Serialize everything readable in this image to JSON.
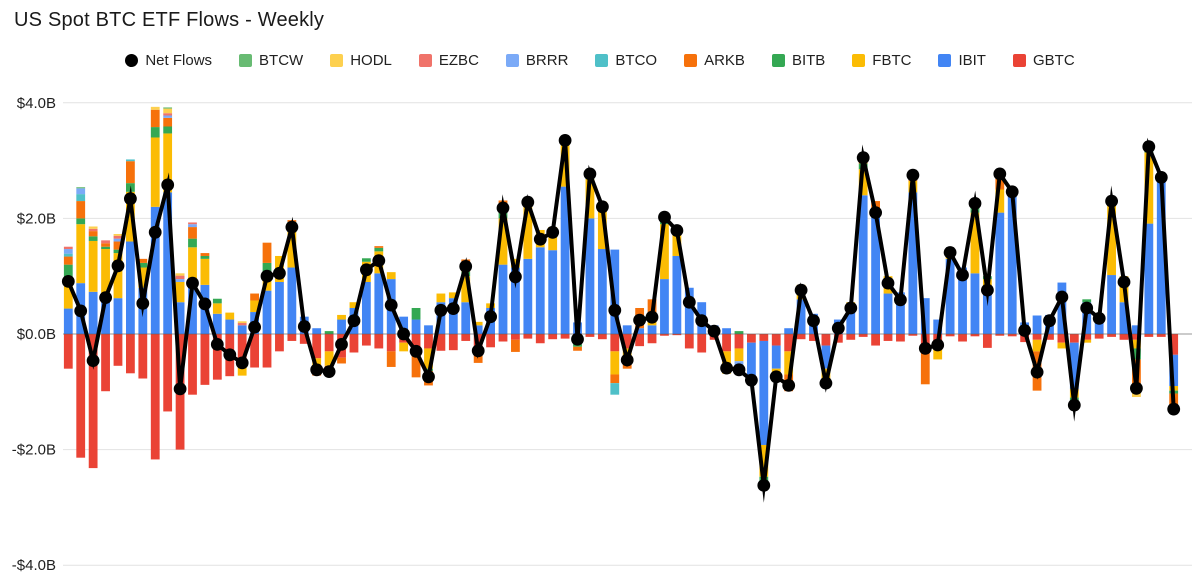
{
  "title": "US Spot BTC ETF Flows - Weekly",
  "legend": [
    {
      "label": "Net Flows",
      "color": "#000000",
      "marker": "circle"
    },
    {
      "label": "BTCW",
      "color": "#68BB73",
      "marker": "square"
    },
    {
      "label": "HODL",
      "color": "#FDD04F",
      "marker": "square"
    },
    {
      "label": "EZBC",
      "color": "#F0736A",
      "marker": "square"
    },
    {
      "label": "BRRR",
      "color": "#7BAAF7",
      "marker": "square"
    },
    {
      "label": "BTCO",
      "color": "#4FC0C8",
      "marker": "square"
    },
    {
      "label": "ARKB",
      "color": "#F6710B",
      "marker": "square"
    },
    {
      "label": "BITB",
      "color": "#34A853",
      "marker": "square"
    },
    {
      "label": "FBTC",
      "color": "#FBBC04",
      "marker": "square"
    },
    {
      "label": "IBIT",
      "color": "#4285F4",
      "marker": "square"
    },
    {
      "label": "GBTC",
      "color": "#EA4335",
      "marker": "square"
    }
  ],
  "chart_data": {
    "type": "bar",
    "subtype": "stacked-bars-with-line",
    "title": "US Spot BTC ETF Flows - Weekly",
    "xlabel": "",
    "ylabel": "",
    "x_axis": {
      "unit": "week",
      "tick_labels_visible": false,
      "n_weeks": 90
    },
    "y_axis": {
      "ticks": [
        {
          "label": "$4.0B",
          "value": 4
        },
        {
          "label": "$2.0B",
          "value": 2
        },
        {
          "label": "$0.0B",
          "value": 0
        },
        {
          "label": "-$2.0B",
          "value": -2
        },
        {
          "label": "-$4.0B",
          "value": -4
        }
      ],
      "ylim": [
        -4.4,
        4.4
      ],
      "grid": true
    },
    "units": "billions USD",
    "series": [
      {
        "name": "GBTC",
        "color": "#EA4335",
        "values": [
          -0.6,
          -2.14,
          -2.32,
          -0.99,
          -0.55,
          -0.68,
          -0.77,
          -2.17,
          -1.34,
          -2.0,
          -1.05,
          -0.88,
          -0.79,
          -0.73,
          -0.55,
          -0.58,
          -0.58,
          -0.3,
          -0.12,
          -0.17,
          -0.42,
          -0.3,
          -0.41,
          -0.32,
          -0.2,
          -0.25,
          -0.3,
          -0.15,
          -0.25,
          -0.25,
          -0.29,
          -0.28,
          -0.12,
          -0.25,
          -0.23,
          -0.13,
          -0.1,
          -0.08,
          -0.16,
          -0.09,
          -0.08,
          -0.1,
          -0.05,
          -0.09,
          -0.3,
          -0.25,
          -0.21,
          -0.16,
          -0.03,
          -0.02,
          -0.25,
          -0.32,
          -0.1,
          -0.3,
          -0.25,
          -0.15,
          -0.12,
          -0.2,
          -0.3,
          -0.09,
          -0.12,
          -0.2,
          -0.15,
          -0.1,
          -0.05,
          -0.2,
          -0.12,
          -0.13,
          -0.03,
          -0.17,
          -0.24,
          -0.04,
          -0.13,
          -0.04,
          -0.24,
          -0.03,
          -0.04,
          -0.14,
          -0.1,
          -0.1,
          -0.15,
          -0.15,
          -0.1,
          -0.08,
          -0.05,
          -0.1,
          -0.1,
          -0.05,
          -0.05,
          -0.36
        ]
      },
      {
        "name": "IBIT",
        "color": "#4285F4",
        "values": [
          0.44,
          0.88,
          0.73,
          0.67,
          0.62,
          1.6,
          0.8,
          2.2,
          2.45,
          0.55,
          0.95,
          0.85,
          0.35,
          0.25,
          0.15,
          0.38,
          0.75,
          0.9,
          1.15,
          0.3,
          0.1,
          0,
          0.25,
          0.45,
          0.9,
          1.05,
          0.95,
          0.3,
          0.25,
          0.15,
          0.55,
          0.62,
          0.55,
          0.15,
          0.45,
          1.2,
          1.15,
          1.3,
          1.5,
          1.45,
          2.55,
          0.2,
          2.0,
          1.47,
          1.46,
          0.15,
          0.1,
          0.15,
          0.95,
          1.35,
          0.8,
          0.55,
          0.15,
          0.1,
          0,
          -0.6,
          -1.8,
          -0.4,
          0.1,
          0.6,
          0.35,
          -0.4,
          0.25,
          0.45,
          2.4,
          2.05,
          0.7,
          0.72,
          2.45,
          0.62,
          0.25,
          1.3,
          1.15,
          1.05,
          0.7,
          2.1,
          2.4,
          0.2,
          0.32,
          0.33,
          0.89,
          -0.8,
          0.55,
          0.35,
          1.02,
          0.55,
          0.15,
          1.91,
          2.64,
          -0.54
        ]
      },
      {
        "name": "FBTC",
        "color": "#FBBC04",
        "values": [
          0.46,
          1.02,
          0.88,
          0.8,
          0.78,
          0.86,
          0.35,
          1.2,
          1.02,
          0.35,
          0.55,
          0.45,
          0.18,
          0.12,
          -0.17,
          0.2,
          0.3,
          0.45,
          0.75,
          0,
          -0.2,
          -0.25,
          0.08,
          0.1,
          0.35,
          0.38,
          0.12,
          -0.15,
          0,
          -0.35,
          0.15,
          0.1,
          0.45,
          0.06,
          0.08,
          0.8,
          0.15,
          1.0,
          0.3,
          0.4,
          0.75,
          0,
          0.68,
          0.82,
          -0.4,
          -0.2,
          0,
          0.15,
          0.95,
          0.4,
          0,
          0,
          0,
          -0.3,
          -0.22,
          0,
          -0.55,
          -0.14,
          -0.4,
          0.25,
          0,
          -0.25,
          0,
          0.1,
          0.45,
          0,
          0.3,
          0,
          0.2,
          0,
          -0.2,
          0.15,
          0,
          1.05,
          0.25,
          0.4,
          0,
          0,
          -0.2,
          0,
          -0.1,
          -0.15,
          -0.05,
          0,
          1.27,
          0.45,
          -0.15,
          1.23,
          0,
          -0.08
        ]
      },
      {
        "name": "BITB",
        "color": "#34A853",
        "values": [
          0.3,
          0.1,
          0.08,
          0.04,
          0.06,
          0.15,
          0.08,
          0.18,
          0.12,
          0,
          0.15,
          0.05,
          0.08,
          0,
          0,
          0,
          0.18,
          0,
          0.04,
          0,
          0,
          0.05,
          0,
          0,
          0.06,
          0.06,
          0,
          0,
          0.2,
          -0.04,
          0,
          0,
          0.08,
          0,
          0,
          0.12,
          0,
          0.06,
          0,
          0,
          0.05,
          -0.12,
          0.04,
          0,
          0,
          0,
          0,
          0,
          0.05,
          0.06,
          0,
          0,
          0,
          0,
          0.05,
          0,
          -0.1,
          0,
          0,
          0,
          0,
          0,
          0,
          0,
          0.1,
          0.1,
          0,
          0,
          0,
          0,
          0,
          0,
          0,
          0.08,
          0.05,
          0,
          0,
          0,
          0,
          0,
          0,
          -0.05,
          0.05,
          0,
          0,
          0,
          -0.19,
          0.05,
          0.07,
          -0.05
        ]
      },
      {
        "name": "ARKB",
        "color": "#F6710B",
        "values": [
          0.14,
          0.3,
          0.09,
          0.06,
          0.14,
          0.38,
          0.07,
          0.3,
          0.15,
          0,
          0.2,
          0.05,
          0,
          0,
          0,
          0.12,
          0.35,
          0,
          0.03,
          0,
          -0.1,
          -0.15,
          -0.1,
          0,
          0,
          0.03,
          -0.27,
          0,
          -0.5,
          -0.25,
          0,
          0,
          0.21,
          -0.25,
          0,
          0.19,
          -0.21,
          0,
          0,
          0,
          0.08,
          -0.07,
          0.1,
          0,
          -0.15,
          -0.15,
          0.35,
          0.3,
          0.1,
          0,
          0,
          0,
          0,
          0,
          0,
          0,
          0,
          0,
          -0.29,
          0,
          0,
          0,
          0,
          0,
          0.15,
          0.15,
          0,
          0,
          0.08,
          -0.7,
          0,
          0,
          0,
          0.12,
          0,
          0.3,
          0,
          0,
          -0.68,
          0,
          0,
          -0.08,
          0,
          0,
          0.06,
          0,
          -0.5,
          0.1,
          0.05,
          -0.27
        ]
      },
      {
        "name": "BTCO",
        "color": "#4FC0C8",
        "values": [
          0.05,
          0.12,
          0,
          0,
          0,
          0.03,
          0,
          0,
          0,
          0,
          0,
          0,
          0,
          0,
          0,
          0,
          0,
          0,
          0,
          0,
          0,
          0,
          0,
          0,
          0,
          0,
          0,
          0,
          0,
          0,
          0,
          0,
          0,
          0,
          0,
          0,
          0,
          0,
          0,
          0,
          0,
          0,
          0,
          0,
          -0.2,
          0,
          0,
          0,
          0,
          0,
          0,
          0,
          0,
          0,
          0,
          0,
          -0.05,
          0,
          0,
          0,
          0,
          0,
          0,
          0,
          0,
          0,
          0,
          0,
          0,
          0,
          0,
          0,
          0,
          0,
          0,
          0,
          0,
          0,
          0,
          0,
          0,
          0,
          0,
          0,
          0,
          0,
          0,
          0,
          0,
          0
        ]
      },
      {
        "name": "BRRR",
        "color": "#7BAAF7",
        "values": [
          0.08,
          0.1,
          0,
          0,
          0.05,
          0,
          0,
          0,
          0.04,
          0.05,
          0.05,
          0,
          0,
          0,
          0,
          0,
          0,
          0,
          0,
          0,
          0,
          0,
          0,
          0,
          0,
          0,
          0,
          0,
          0,
          0,
          0,
          0,
          0,
          0,
          0,
          0,
          0,
          0,
          0,
          0,
          0,
          0,
          0,
          0,
          0,
          0,
          0,
          0,
          0,
          0,
          0,
          0,
          0,
          0,
          -0.2,
          0,
          0,
          0,
          0,
          0,
          0,
          0,
          0,
          0,
          0,
          0,
          0,
          0,
          0,
          0,
          0,
          0,
          0,
          0,
          0,
          0,
          0.05,
          0,
          0,
          0,
          0,
          0,
          0,
          0,
          0,
          0,
          0,
          0,
          0,
          0
        ]
      },
      {
        "name": "EZBC",
        "color": "#F0736A",
        "values": [
          0.04,
          0,
          0.04,
          0.05,
          0.05,
          0,
          0,
          0,
          0.04,
          0.06,
          0.03,
          0,
          0,
          0,
          0.04,
          0,
          0,
          0,
          0,
          0,
          0,
          0,
          0,
          0,
          0,
          0,
          0,
          0,
          0,
          0,
          0,
          0,
          0,
          0,
          0,
          0,
          0,
          0,
          0,
          0,
          0,
          0,
          0,
          0,
          0,
          0,
          0,
          0,
          0,
          0,
          0,
          0,
          0,
          0,
          0,
          -0.05,
          0,
          0,
          0,
          0,
          0,
          0,
          0,
          0,
          0,
          0,
          0,
          0,
          0,
          0,
          0,
          0,
          0,
          0,
          0,
          0,
          0,
          0,
          0,
          0,
          0,
          0,
          0,
          0,
          0,
          0,
          0,
          0,
          0,
          0
        ]
      },
      {
        "name": "HODL",
        "color": "#FDD04F",
        "values": [
          0,
          0,
          0.04,
          0,
          0.03,
          0,
          0,
          0.05,
          0.08,
          0.04,
          0,
          0,
          0,
          0,
          0.03,
          0,
          0,
          0,
          0,
          0,
          0,
          0,
          0,
          0,
          0,
          0,
          0,
          0,
          0,
          0,
          0,
          0,
          0,
          0,
          0,
          0,
          0,
          0,
          0,
          0,
          0,
          0,
          0,
          0,
          0,
          0,
          0,
          0,
          0,
          0,
          0,
          0,
          0,
          -0.09,
          0,
          0,
          0,
          0,
          0,
          0,
          0,
          0,
          0,
          0,
          0,
          0,
          0,
          0,
          0.05,
          0,
          0,
          0,
          0,
          0,
          0,
          0,
          0.05,
          0,
          0,
          0,
          0,
          0,
          0,
          0,
          0,
          0,
          -0.15,
          0,
          0,
          0
        ]
      },
      {
        "name": "BTCW",
        "color": "#68BB73",
        "values": [
          0,
          0.02,
          0,
          0,
          0,
          0,
          0,
          0,
          0.02,
          0,
          0,
          0,
          0,
          0,
          0,
          0,
          0,
          0,
          0,
          0,
          0,
          0,
          0,
          0,
          0,
          0,
          0,
          0,
          0,
          0,
          0,
          0,
          0,
          0,
          0,
          0,
          0,
          0,
          0,
          0,
          0,
          0,
          0,
          0,
          0,
          0,
          0,
          0,
          0,
          0,
          0,
          0,
          0,
          0,
          0,
          0,
          0,
          0,
          0,
          0,
          0,
          0,
          0,
          0,
          0,
          0,
          0,
          0,
          0,
          0,
          0,
          0,
          0,
          0,
          0,
          0,
          0,
          0,
          0,
          0,
          0,
          0,
          0,
          0,
          0,
          0,
          0,
          0,
          0,
          0
        ]
      }
    ],
    "net_flows": {
      "name": "Net Flows",
      "color": "#000000",
      "values": [
        0.91,
        0.4,
        -0.46,
        0.63,
        1.18,
        2.34,
        0.53,
        1.76,
        2.58,
        -0.95,
        0.88,
        0.52,
        -0.18,
        -0.36,
        -0.5,
        0.12,
        1.0,
        1.05,
        1.85,
        0.13,
        -0.62,
        -0.65,
        -0.18,
        0.23,
        1.11,
        1.27,
        0.5,
        0.0,
        -0.3,
        -0.74,
        0.41,
        0.44,
        1.17,
        -0.29,
        0.3,
        2.18,
        0.99,
        2.28,
        1.64,
        1.76,
        3.35,
        -0.09,
        2.77,
        2.2,
        0.41,
        -0.45,
        0.24,
        0.29,
        2.02,
        1.79,
        0.55,
        0.23,
        0.05,
        -0.59,
        -0.62,
        -0.8,
        -2.62,
        -0.74,
        -0.89,
        0.76,
        0.23,
        -0.85,
        0.1,
        0.45,
        3.05,
        2.1,
        0.88,
        0.59,
        2.75,
        -0.25,
        -0.19,
        1.41,
        1.02,
        2.26,
        0.76,
        2.77,
        2.46,
        0.06,
        -0.66,
        0.23,
        0.64,
        -1.23,
        0.45,
        0.27,
        2.3,
        0.9,
        -0.94,
        3.24,
        2.71,
        -1.3
      ]
    },
    "legend_position": "top"
  }
}
